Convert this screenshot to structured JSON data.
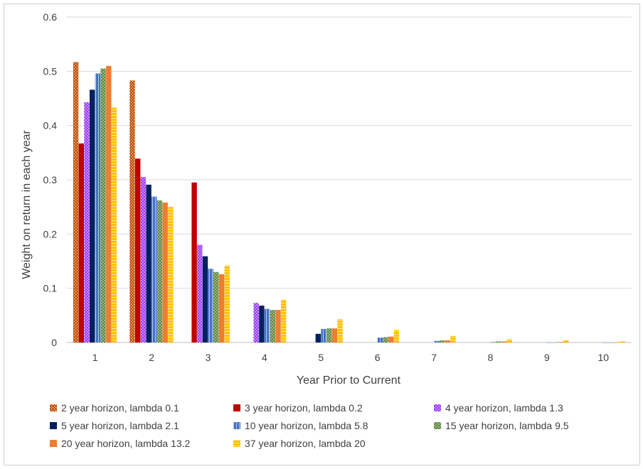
{
  "chart_data": {
    "type": "bar",
    "title": "",
    "xlabel": "Year Prior to Current",
    "ylabel": "Weight on return in each year",
    "ylim": [
      0,
      0.6
    ],
    "yticks": [
      "0",
      "0.1",
      "0.2",
      "0.3",
      "0.4",
      "0.5",
      "0.6"
    ],
    "categories": [
      "1",
      "2",
      "3",
      "4",
      "5",
      "6",
      "7",
      "8",
      "9",
      "10"
    ],
    "grid": "horizontal",
    "legend_position": "bottom",
    "series": [
      {
        "name": "2 year horizon, lambda 0.1",
        "color": "#c55a11",
        "values": [
          0.517,
          0.483,
          0,
          0,
          0,
          0,
          0,
          0,
          0,
          0
        ]
      },
      {
        "name": "3 year horizon, lambda 0.2",
        "color": "#c00000",
        "values": [
          0.367,
          0.339,
          0.295,
          0,
          0,
          0,
          0,
          0,
          0,
          0
        ]
      },
      {
        "name": "4 year horizon, lambda 1.3",
        "color": "#9933ff",
        "values": [
          0.443,
          0.305,
          0.18,
          0.073,
          0,
          0,
          0,
          0,
          0,
          0
        ]
      },
      {
        "name": "5 year horizon, lambda 2.1",
        "color": "#002060",
        "values": [
          0.466,
          0.291,
          0.159,
          0.068,
          0.016,
          0,
          0,
          0,
          0,
          0
        ]
      },
      {
        "name": "10 year horizon, lambda 5.8",
        "color": "#4472c4",
        "values": [
          0.496,
          0.269,
          0.136,
          0.062,
          0.025,
          0.009,
          0.003,
          0.001,
          0.0003,
          0.0001
        ]
      },
      {
        "name": "15 year horizon, lambda 9.5",
        "color": "#548235",
        "values": [
          0.505,
          0.262,
          0.13,
          0.06,
          0.026,
          0.01,
          0.004,
          0.002,
          0.0005,
          0.0002
        ]
      },
      {
        "name": "20 year horizon, lambda 13.2",
        "color": "#ed7d31",
        "values": [
          0.51,
          0.258,
          0.126,
          0.06,
          0.026,
          0.011,
          0.004,
          0.002,
          0.001,
          0.0003
        ]
      },
      {
        "name": "37 year horizon, lambda 20",
        "color": "#ffc000",
        "values": [
          0.433,
          0.25,
          0.142,
          0.079,
          0.043,
          0.023,
          0.012,
          0.006,
          0.004,
          0.002
        ]
      }
    ]
  }
}
